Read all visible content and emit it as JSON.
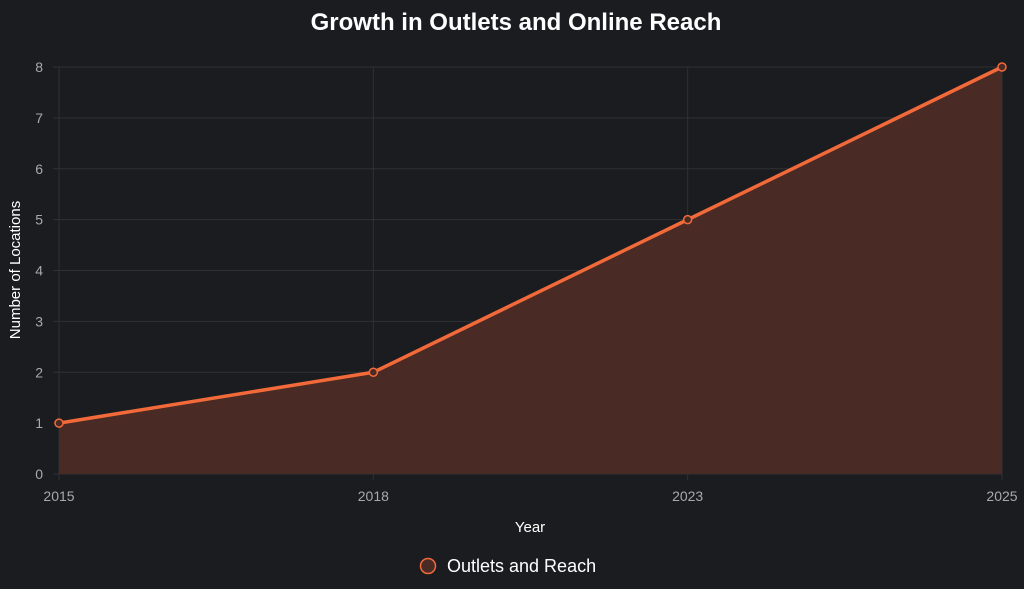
{
  "chart_data": {
    "type": "area",
    "title": "Growth in Outlets and Online Reach",
    "xlabel": "Year",
    "ylabel": "Number of Locations",
    "categories": [
      "2015",
      "2018",
      "2023",
      "2025"
    ],
    "series": [
      {
        "name": "Outlets and Reach",
        "values": [
          1,
          2,
          5,
          8
        ]
      }
    ],
    "ylim": [
      0,
      8
    ],
    "yticks": [
      "0",
      "1",
      "2",
      "3",
      "4",
      "5",
      "6",
      "7",
      "8"
    ],
    "grid": true,
    "legend_position": "bottom"
  },
  "colors": {
    "background": "#1b1c20",
    "line": "#f26a3a",
    "fill": "#4a2a24",
    "grid": "#2f3034",
    "tick_text": "#a8a9ad",
    "text": "#ffffff"
  }
}
